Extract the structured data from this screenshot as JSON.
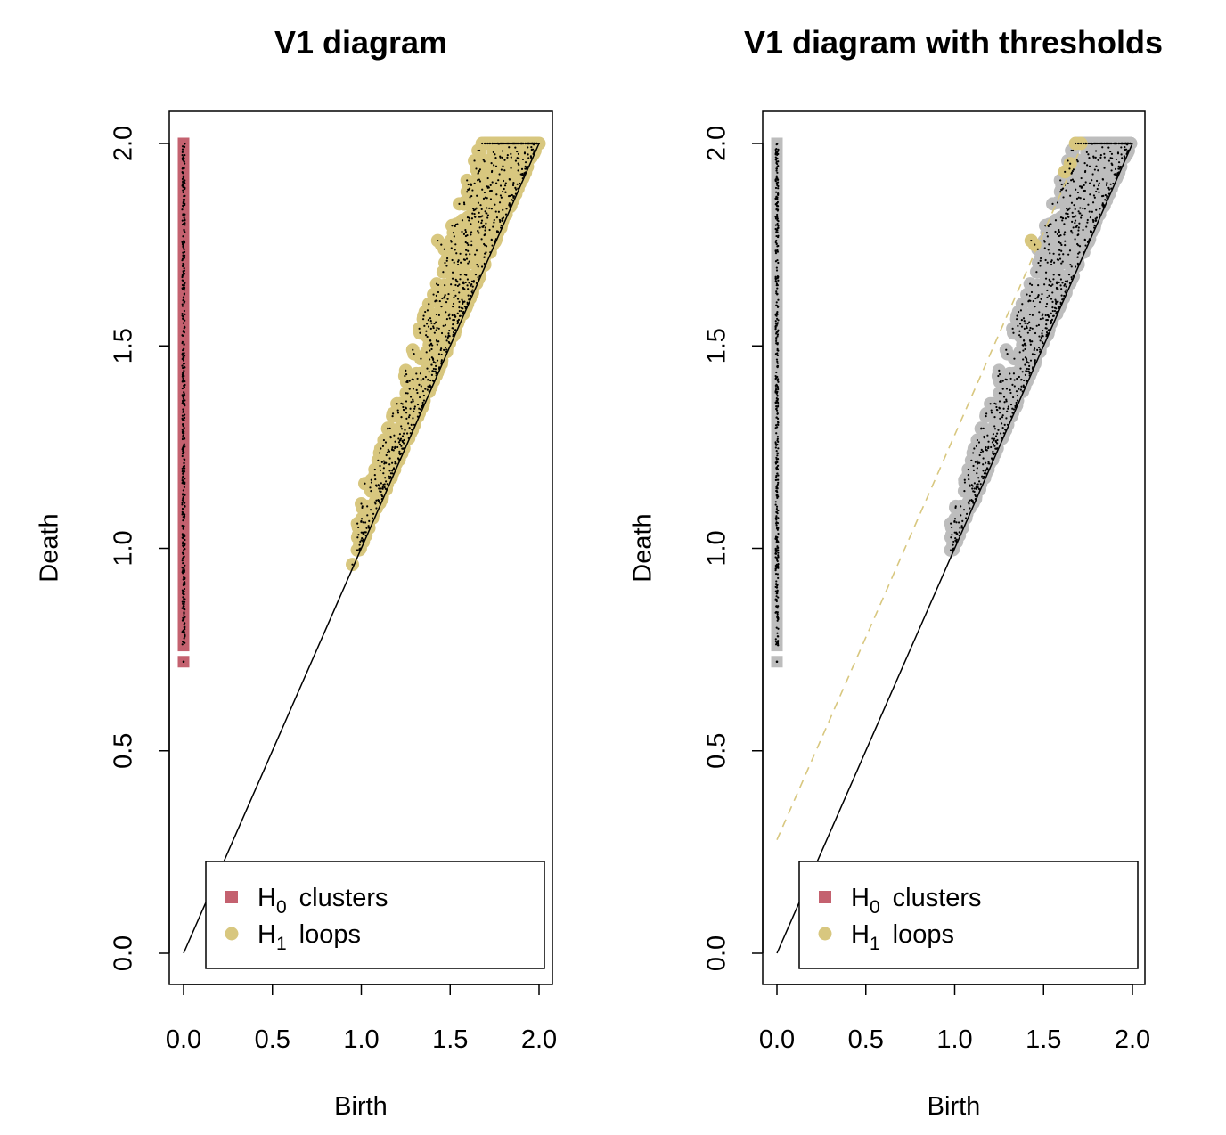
{
  "colors": {
    "h0": "#c4616f",
    "h1": "#d8c77f",
    "grey": "#bdbdbd",
    "points": "#000000",
    "threshold_line": "#d8c77f"
  },
  "chart_data": [
    {
      "type": "scatter",
      "title": "V1  diagram",
      "xlabel": "Birth",
      "ylabel": "Death",
      "xlim": [
        0,
        2
      ],
      "ylim": [
        0,
        2
      ],
      "xticks": [
        "0.0",
        "0.5",
        "1.0",
        "1.5",
        "2.0"
      ],
      "yticks": [
        "0.0",
        "0.5",
        "1.0",
        "1.5",
        "2.0"
      ],
      "diagonal": true,
      "legend": {
        "placement": "bottom-right",
        "entries": [
          {
            "base": "H",
            "sub": "0",
            "label": "clusters",
            "marker": "square",
            "color": "#c4616f"
          },
          {
            "base": "H",
            "sub": "1",
            "label": "loops",
            "marker": "circle",
            "color": "#d8c77f"
          }
        ]
      },
      "series": [
        {
          "key": "H0",
          "color": "#c4616f",
          "birth": 0.0,
          "death_range": [
            0.76,
            2.0
          ],
          "extra_deaths": [
            0.72
          ]
        },
        {
          "key": "H1",
          "color": "#d8c77f",
          "birth_range": [
            0.95,
            2.0
          ],
          "death_range": [
            0.96,
            2.0
          ],
          "points": [
            [
              0.95,
              0.96
            ],
            [
              1.0,
              1.02
            ],
            [
              1.02,
              1.04
            ],
            [
              1.0,
              1.11
            ],
            [
              1.02,
              1.16
            ],
            [
              1.05,
              1.15
            ],
            [
              1.43,
              1.76
            ],
            [
              1.45,
              1.75
            ],
            [
              1.68,
              2.0
            ],
            [
              1.71,
              2.0
            ],
            [
              1.78,
              2.0
            ],
            [
              1.82,
              2.0
            ],
            [
              1.9,
              2.0
            ],
            [
              1.95,
              2.0
            ],
            [
              2.0,
              2.0
            ],
            [
              1.62,
              1.87
            ],
            [
              1.58,
              1.85
            ]
          ]
        }
      ]
    },
    {
      "type": "scatter",
      "title": "V1  diagram with thresholds",
      "xlabel": "Birth",
      "ylabel": "Death",
      "xlim": [
        0,
        2
      ],
      "ylim": [
        0,
        2
      ],
      "xticks": [
        "0.0",
        "0.5",
        "1.0",
        "1.5",
        "2.0"
      ],
      "yticks": [
        "0.0",
        "0.5",
        "1.0",
        "1.5",
        "2.0"
      ],
      "diagonal": true,
      "threshold": {
        "intercept": 0.28,
        "slope": 1.0,
        "style": "dashed",
        "color": "#d8c77f"
      },
      "legend": {
        "placement": "bottom-right",
        "entries": [
          {
            "base": "H",
            "sub": "0",
            "label": "clusters",
            "marker": "square",
            "color": "#c4616f"
          },
          {
            "base": "H",
            "sub": "1",
            "label": "loops",
            "marker": "circle",
            "color": "#d8c77f"
          }
        ]
      },
      "series": [
        {
          "key": "H0",
          "color": "#bdbdbd",
          "birth": 0.0,
          "death_range": [
            0.76,
            2.0
          ],
          "extra_deaths": [
            0.72
          ]
        },
        {
          "key": "H1",
          "color": "#bdbdbd",
          "birth_range": [
            0.95,
            2.0
          ],
          "death_range": [
            0.96,
            2.0
          ],
          "highlighted": [
            [
              1.43,
              1.76
            ],
            [
              1.45,
              1.75
            ],
            [
              1.62,
              1.93
            ],
            [
              1.65,
              1.95
            ],
            [
              1.68,
              2.0
            ],
            [
              1.71,
              2.0
            ]
          ]
        }
      ]
    }
  ]
}
